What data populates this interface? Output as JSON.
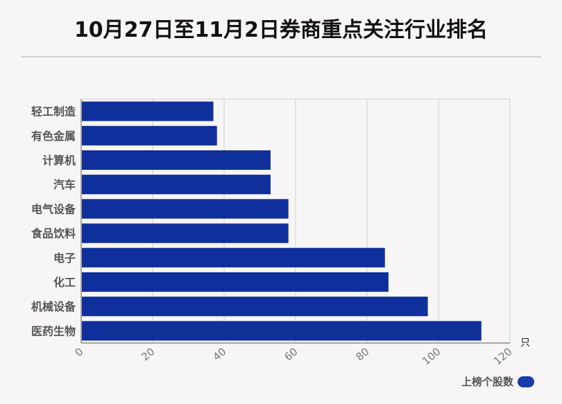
{
  "title": "10月27日至11月2日券商重点关注行业排名",
  "unit": "只",
  "legend": {
    "label": "上榜个股数",
    "color": "#1a3aa8"
  },
  "chart_data": {
    "type": "bar",
    "orientation": "horizontal",
    "categories": [
      "轻工制造",
      "有色金属",
      "计算机",
      "汽车",
      "电气设备",
      "食品饮料",
      "电子",
      "化工",
      "机械设备",
      "医药生物"
    ],
    "series": [
      {
        "name": "上榜个股数",
        "values": [
          37,
          38,
          53,
          53,
          58,
          58,
          85,
          86,
          97,
          112
        ]
      }
    ],
    "xlim": [
      0,
      120
    ],
    "xticks": [
      "0",
      "20",
      "40",
      "60",
      "80",
      "100",
      "120"
    ],
    "grid": true,
    "legend_position": "bottom-right",
    "bar_color": "#0f2f9a"
  }
}
